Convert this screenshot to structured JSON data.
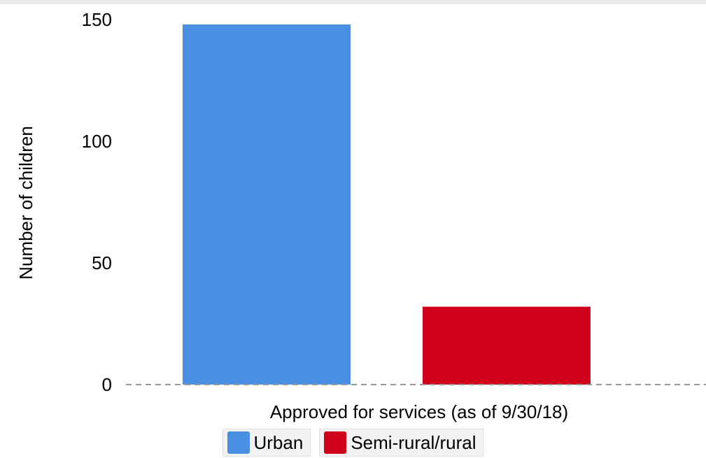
{
  "chart_data": {
    "type": "bar",
    "categories": [
      "Approved for services (as of 9/30/18)"
    ],
    "series": [
      {
        "name": "Urban",
        "values": [
          148
        ],
        "color": "#4a90e2"
      },
      {
        "name": "Semi-rural/rural",
        "values": [
          32
        ],
        "color": "#d0021b"
      }
    ],
    "xlabel": "Approved for services (as of 9/30/18)",
    "ylabel": "Number of children",
    "ylim": [
      0,
      150
    ],
    "yticks": [
      "0",
      "50",
      "100",
      "150"
    ],
    "grid": false,
    "baseline_style": "dashed",
    "legend_position": "bottom"
  }
}
